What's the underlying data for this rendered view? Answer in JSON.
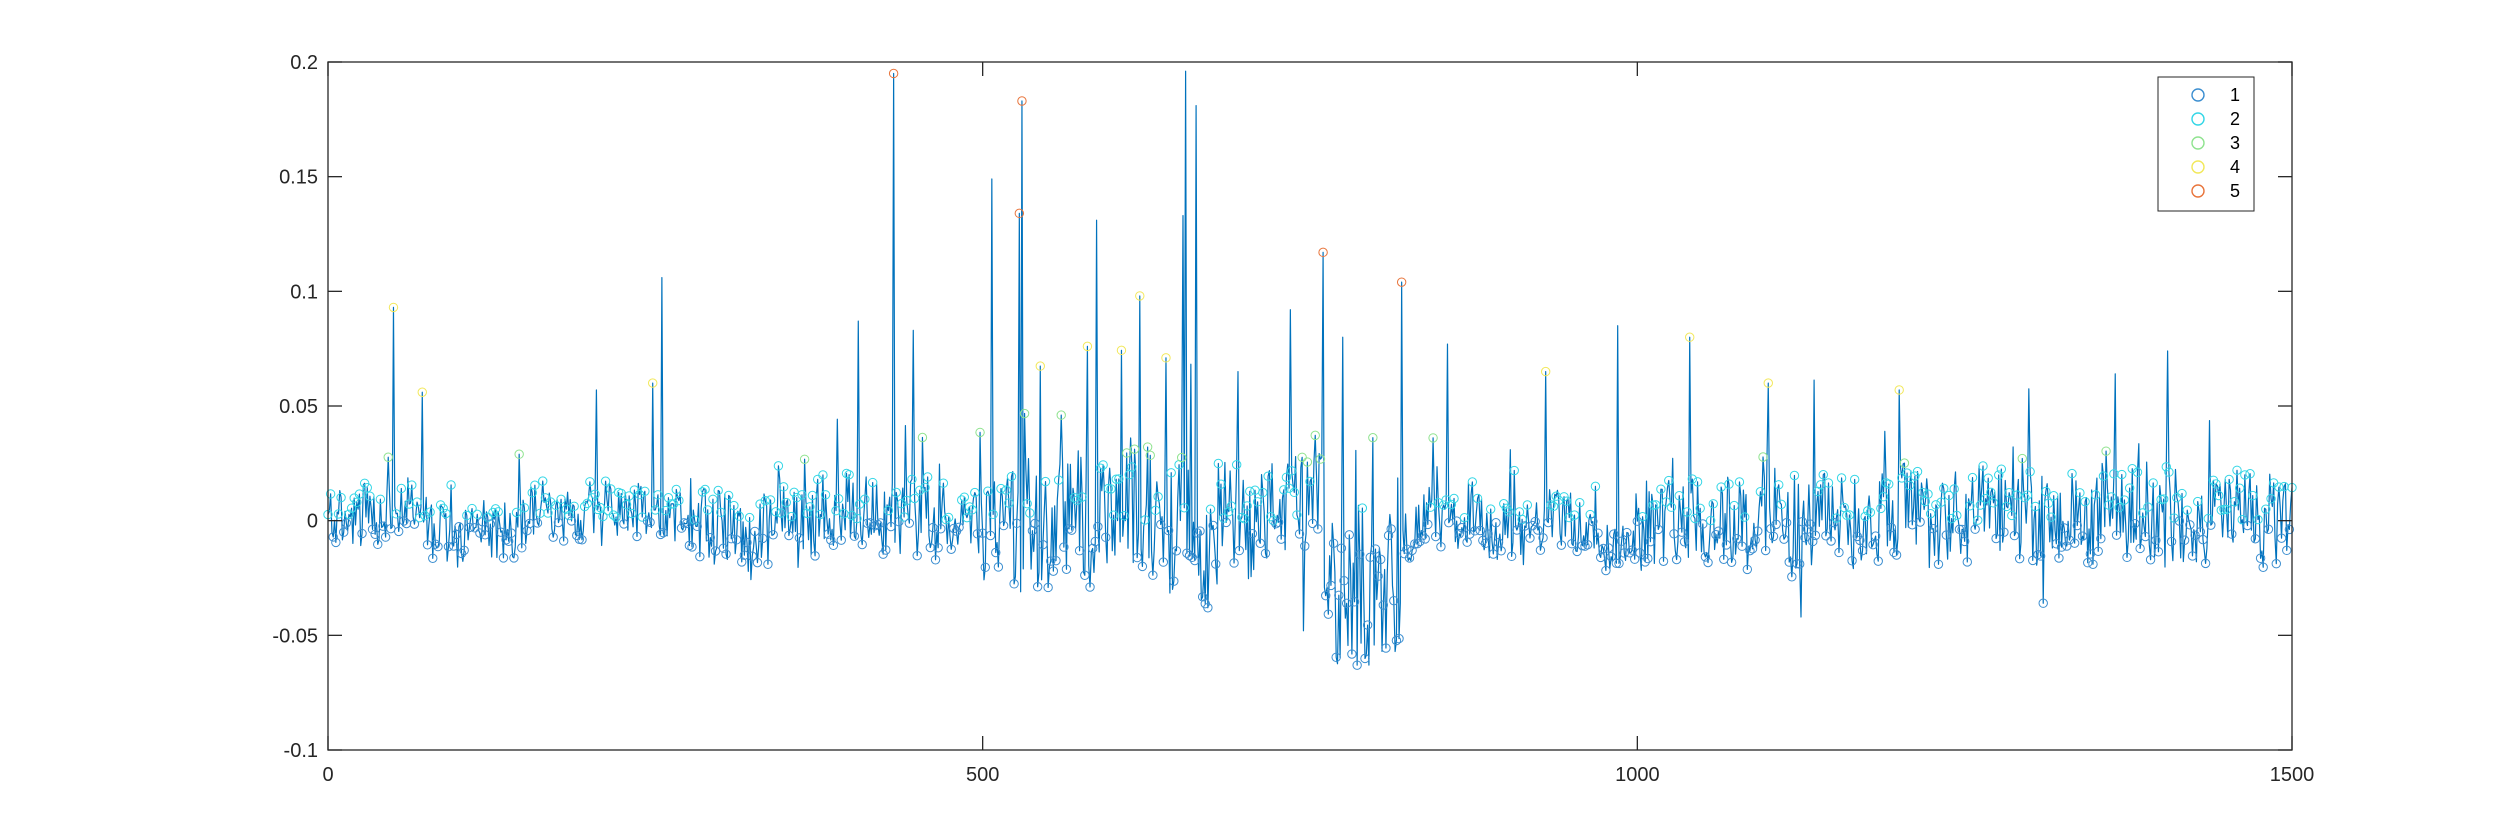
{
  "chart_data": {
    "type": "line",
    "title": "",
    "xlabel": "",
    "ylabel": "",
    "xlim": [
      0,
      1500
    ],
    "ylim": [
      -0.1,
      0.2
    ],
    "xticks": [
      0,
      500,
      1000,
      1500
    ],
    "yticks": [
      -0.1,
      -0.05,
      0,
      0.05,
      0.1,
      0.15,
      0.2
    ],
    "xtick_labels": [
      "0",
      "500",
      "1000",
      "1500"
    ],
    "ytick_labels": [
      "-0.1",
      "-0.05",
      "0",
      "0.05",
      "0.1",
      "0.15",
      "0.2"
    ],
    "grid": false,
    "legend_position": "top-right",
    "line_color": "#0072BD",
    "marker": "circle",
    "series": [
      {
        "name": "1",
        "color": "#3b8ed0",
        "y_range": [
          -0.065,
          0.025
        ]
      },
      {
        "name": "2",
        "color": "#33d6e6",
        "y_range": [
          0.0,
          0.05
        ]
      },
      {
        "name": "3",
        "color": "#8fe38f",
        "y_range": [
          0.025,
          0.075
        ]
      },
      {
        "name": "4",
        "color": "#f2e85a",
        "y_range": [
          0.05,
          0.15
        ]
      },
      {
        "name": "5",
        "color": "#e8743b",
        "y_range": [
          0.1,
          0.2
        ]
      }
    ],
    "peaks": [
      {
        "x": 50,
        "y": 0.093
      },
      {
        "x": 72,
        "y": 0.056
      },
      {
        "x": 205,
        "y": 0.057
      },
      {
        "x": 248,
        "y": 0.06
      },
      {
        "x": 255,
        "y": 0.106
      },
      {
        "x": 405,
        "y": 0.087
      },
      {
        "x": 432,
        "y": 0.195
      },
      {
        "x": 447,
        "y": 0.083
      },
      {
        "x": 507,
        "y": 0.149
      },
      {
        "x": 530,
        "y": 0.183
      },
      {
        "x": 528,
        "y": 0.134
      },
      {
        "x": 587,
        "y": 0.131
      },
      {
        "x": 580,
        "y": 0.076
      },
      {
        "x": 620,
        "y": 0.098
      },
      {
        "x": 640,
        "y": 0.071
      },
      {
        "x": 655,
        "y": 0.196
      },
      {
        "x": 653,
        "y": 0.133
      },
      {
        "x": 663,
        "y": 0.181
      },
      {
        "x": 695,
        "y": 0.065
      },
      {
        "x": 735,
        "y": 0.092
      },
      {
        "x": 760,
        "y": 0.117
      },
      {
        "x": 775,
        "y": 0.08
      },
      {
        "x": 820,
        "y": 0.104
      },
      {
        "x": 855,
        "y": 0.077
      },
      {
        "x": 930,
        "y": 0.065
      },
      {
        "x": 985,
        "y": 0.085
      },
      {
        "x": 1040,
        "y": 0.08
      },
      {
        "x": 1100,
        "y": 0.06
      },
      {
        "x": 1200,
        "y": 0.057
      },
      {
        "x": 1365,
        "y": 0.064
      },
      {
        "x": 1405,
        "y": 0.074
      }
    ],
    "troughs": [
      {
        "x": 795,
        "y": -0.063
      },
      {
        "x": 786,
        "y": -0.063
      },
      {
        "x": 805,
        "y": -0.057
      },
      {
        "x": 745,
        "y": -0.048
      },
      {
        "x": 1125,
        "y": -0.042
      },
      {
        "x": 1310,
        "y": -0.036
      }
    ]
  }
}
